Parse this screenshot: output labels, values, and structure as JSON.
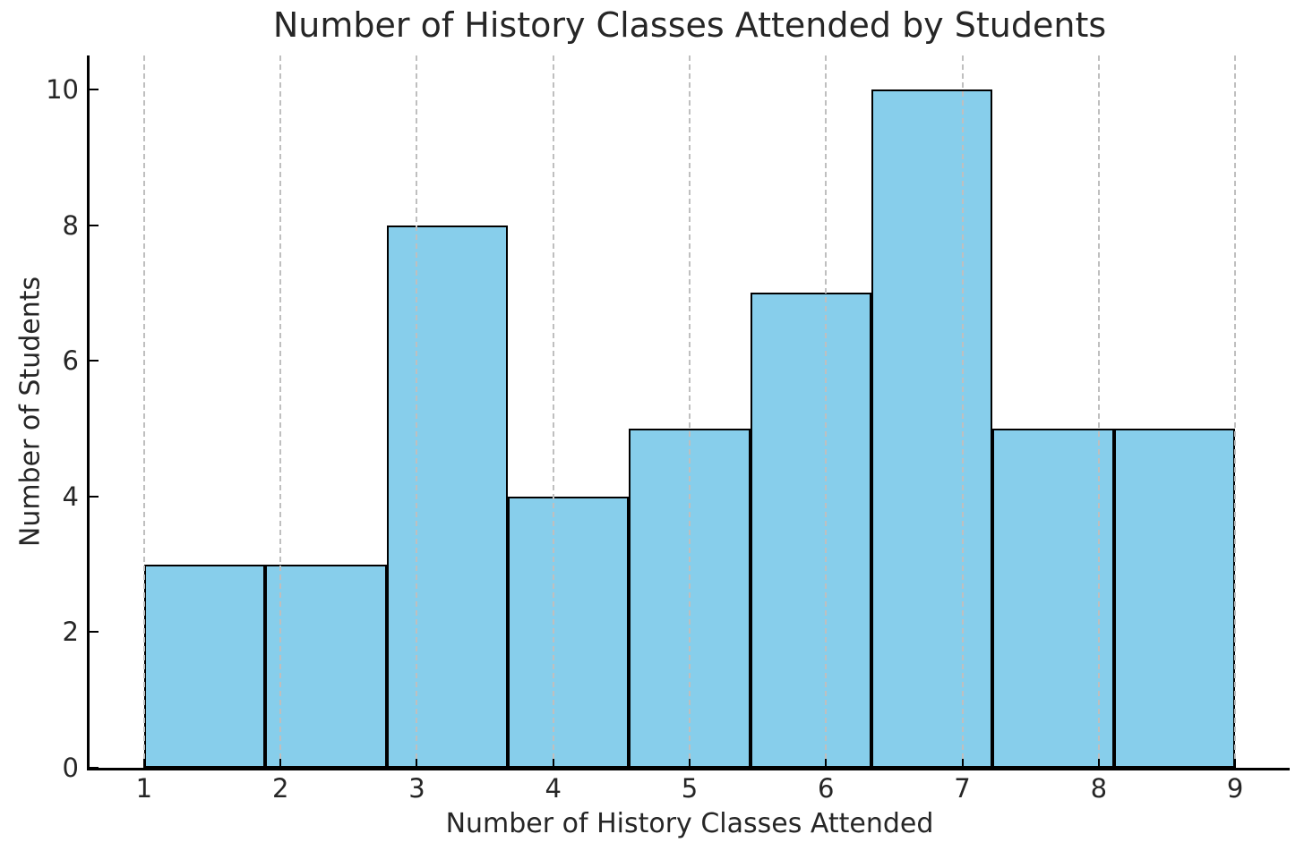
{
  "chart_data": {
    "type": "bar",
    "subtype": "histogram",
    "title": "Number of History Classes Attended by Students",
    "xlabel": "Number of History Classes Attended",
    "ylabel": "Number of Students",
    "bin_edges": [
      1.0,
      1.8889,
      2.7778,
      3.6667,
      4.5556,
      5.4444,
      6.3333,
      7.2222,
      8.1111,
      9.0
    ],
    "counts": [
      3,
      3,
      8,
      4,
      5,
      7,
      10,
      5,
      5
    ],
    "xticks": [
      1,
      2,
      3,
      4,
      5,
      6,
      7,
      8,
      9
    ],
    "yticks": [
      0,
      2,
      4,
      6,
      8,
      10
    ],
    "xlim": [
      0.6,
      9.4
    ],
    "ylim": [
      0,
      10.5
    ],
    "grid": {
      "axis": "x",
      "line_style": "dashed",
      "color": "#bfbfbf",
      "drawn_above_bars": true
    },
    "legend": null,
    "colors": {
      "bar_fill": "#87CEEB",
      "bar_edge": "#000000",
      "spine": "#000000",
      "text": "#262626",
      "background": "#ffffff"
    }
  }
}
